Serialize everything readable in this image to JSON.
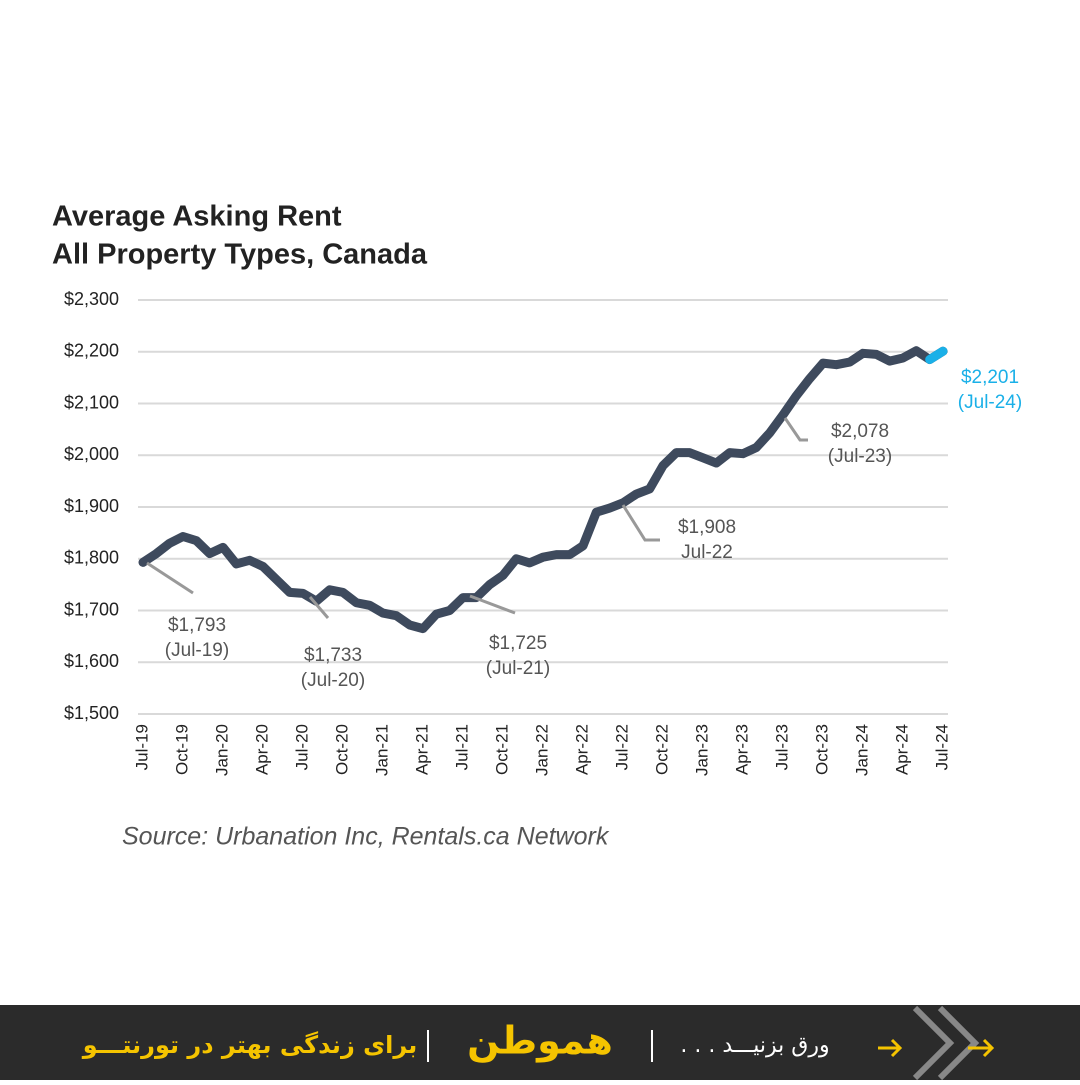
{
  "chart_data": {
    "type": "line",
    "title": [
      "Average Asking Rent",
      "All Property Types, Canada"
    ],
    "categories": [
      "Jul-19",
      null,
      null,
      "Oct-19",
      null,
      null,
      "Jan-20",
      null,
      null,
      "Apr-20",
      null,
      null,
      "Jul-20",
      null,
      null,
      "Oct-20",
      null,
      null,
      "Jan-21",
      null,
      null,
      "Apr-21",
      null,
      null,
      "Jul-21",
      null,
      null,
      "Oct-21",
      null,
      null,
      "Jan-22",
      null,
      null,
      "Apr-22",
      null,
      null,
      "Jul-22",
      null,
      null,
      "Oct-22",
      null,
      null,
      "Jan-23",
      null,
      null,
      "Apr-23",
      null,
      null,
      "Jul-23",
      null,
      null,
      "Oct-23",
      null,
      null,
      "Jan-24",
      null,
      null,
      "Apr-24",
      null,
      null,
      "Jul-24"
    ],
    "values": [
      1793,
      1810,
      1830,
      1843,
      1835,
      1810,
      1822,
      1790,
      1797,
      1785,
      1760,
      1735,
      1733,
      1718,
      1740,
      1735,
      1715,
      1710,
      1695,
      1690,
      1672,
      1665,
      1693,
      1700,
      1725,
      1725,
      1750,
      1768,
      1800,
      1792,
      1803,
      1808,
      1808,
      1825,
      1890,
      1898,
      1908,
      1925,
      1935,
      1980,
      2005,
      2005,
      1995,
      1985,
      2005,
      2003,
      2015,
      2043,
      2078,
      2115,
      2148,
      2178,
      2175,
      2180,
      2197,
      2195,
      2182,
      2188,
      2202,
      2185,
      2201
    ],
    "color": "#3e4a5d",
    "highlight_color": "#1ab0e8",
    "ylim": [
      1500,
      2300
    ],
    "yticks": [
      {
        "value": 1500,
        "label": "$1,500"
      },
      {
        "value": 1600,
        "label": "$1,600"
      },
      {
        "value": 1700,
        "label": "$1,700"
      },
      {
        "value": 1800,
        "label": "$1,800"
      },
      {
        "value": 1900,
        "label": "$1,900"
      },
      {
        "value": 2000,
        "label": "$2,000"
      },
      {
        "value": 2100,
        "label": "$2,100"
      },
      {
        "value": 2200,
        "label": "$2,200"
      },
      {
        "value": 2300,
        "label": "$2,300"
      }
    ],
    "grid": true,
    "annotations": [
      [
        "$1,793",
        "(Jul-19)"
      ],
      [
        "$1,733",
        "(Jul-20)"
      ],
      [
        "$1,725",
        "(Jul-21)"
      ],
      [
        "$1,908",
        "Jul-22"
      ],
      [
        "$2,078",
        "(Jul-23)"
      ],
      [
        "$2,201",
        "(Jul-24)"
      ]
    ],
    "source": "Source: Urbanation Inc, Rentals.ca Network"
  },
  "footer": {
    "tagline": "برای زندگی بهتر در تورنتـــو",
    "logo": "هموطن",
    "swipe": "ورق بزنیـــد . . ."
  }
}
